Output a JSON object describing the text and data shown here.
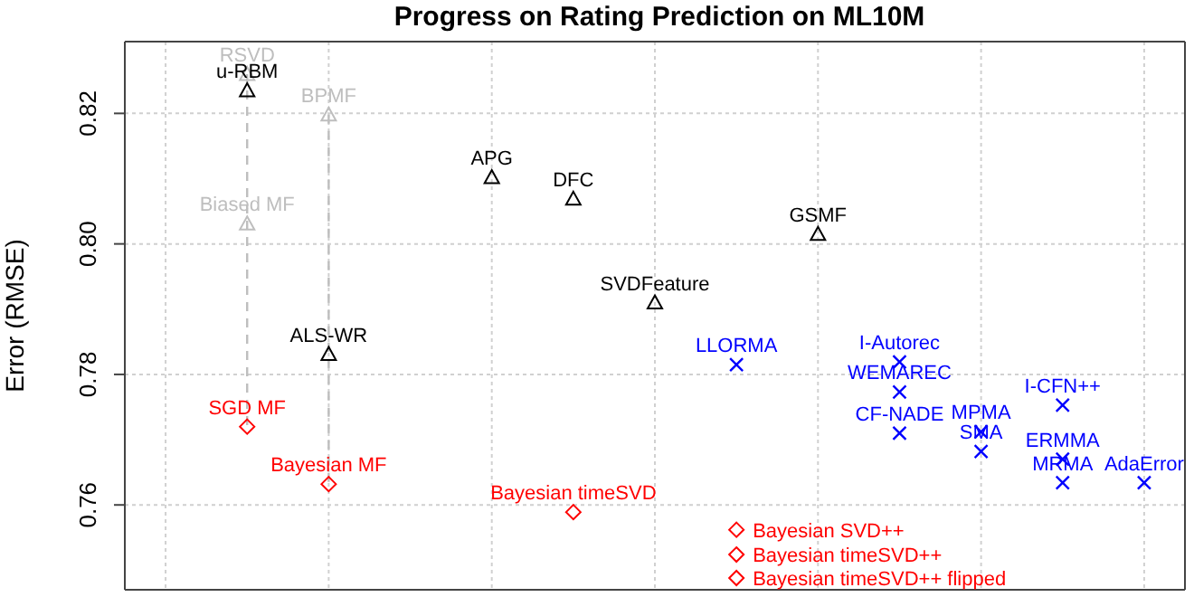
{
  "chart_data": {
    "type": "scatter",
    "title": "Progress on Rating Prediction on ML10M",
    "ylabel": "Error (RMSE)",
    "categories": [
      null,
      null,
      null,
      null,
      null,
      null,
      null,
      null,
      null,
      null,
      null,
      null,
      null
    ],
    "ylim": [
      0.747,
      0.831
    ],
    "yticks": [
      {
        "value": 0.76,
        "label": "0.76"
      },
      {
        "value": 0.78,
        "label": "0.78"
      },
      {
        "value": 0.8,
        "label": "0.80"
      },
      {
        "value": 0.82,
        "label": "0.82"
      }
    ],
    "grid": true,
    "legend": false,
    "series": [
      {
        "color": "#000000",
        "marker": "triangle",
        "values": [
          null,
          0.8235,
          0.7831,
          null,
          0.8102,
          0.8069,
          0.791,
          null,
          0.8015,
          null,
          null,
          null,
          null
        ],
        "value_labels": [
          null,
          "u-RBM",
          "ALS-WR",
          null,
          "APG",
          "DFC",
          "SVDFeature",
          null,
          "GSMF",
          null,
          null,
          null,
          null
        ]
      },
      {
        "color": "#bebebe",
        "marker": "triangle",
        "line_style": "dashed",
        "values": [
          null,
          0.826,
          0.8198,
          null,
          null,
          null,
          null,
          null,
          null,
          null,
          null,
          null,
          null
        ],
        "value_labels": [
          null,
          "RSVD",
          "BPMF",
          null,
          null,
          null,
          null,
          null,
          null,
          null,
          null,
          null,
          null
        ]
      },
      {
        "color": "#bebebe",
        "marker": "triangle",
        "values": [
          null,
          0.8031,
          null,
          null,
          null,
          null,
          null,
          null,
          null,
          null,
          null,
          null,
          null
        ],
        "value_labels": [
          null,
          "Biased MF",
          null,
          null,
          null,
          null,
          null,
          null,
          null,
          null,
          null,
          null,
          null
        ]
      },
      {
        "color": "#ff0000",
        "marker": "diamond",
        "values": [
          null,
          0.772,
          0.7632,
          null,
          null,
          0.7589,
          null,
          0.7562,
          null,
          null,
          null,
          null,
          null
        ],
        "value_labels": [
          null,
          "SGD MF",
          "Bayesian MF",
          null,
          null,
          "Bayesian timeSVD",
          null,
          "Bayesian SVD++",
          null,
          null,
          null,
          null,
          null
        ]
      },
      {
        "color": "#ff0000",
        "marker": "diamond",
        "values": [
          null,
          null,
          null,
          null,
          null,
          null,
          null,
          0.7524,
          null,
          null,
          null,
          null,
          null
        ],
        "value_labels": [
          null,
          null,
          null,
          null,
          null,
          null,
          null,
          "Bayesian timeSVD++",
          null,
          null,
          null,
          null,
          null
        ]
      },
      {
        "color": "#ff0000",
        "marker": "diamond",
        "values": [
          null,
          null,
          null,
          null,
          null,
          null,
          null,
          0.7488,
          null,
          null,
          null,
          null,
          null
        ],
        "value_labels": [
          null,
          null,
          null,
          null,
          null,
          null,
          null,
          "Bayesian timeSVD++ flipped",
          null,
          null,
          null,
          null,
          null
        ]
      },
      {
        "color": "#0000ff",
        "marker": "cross",
        "values": [
          null,
          null,
          null,
          null,
          null,
          null,
          null,
          0.7815,
          null,
          0.7819,
          0.7712,
          0.7753,
          0.7634
        ],
        "value_labels": [
          null,
          null,
          null,
          null,
          null,
          null,
          null,
          "LLORMA",
          null,
          "I-Autorec",
          "MPMA",
          "I-CFN++",
          "AdaError"
        ]
      },
      {
        "color": "#0000ff",
        "marker": "cross",
        "values": [
          null,
          null,
          null,
          null,
          null,
          null,
          null,
          null,
          null,
          0.7773,
          0.7682,
          0.767,
          null
        ],
        "value_labels": [
          null,
          null,
          null,
          null,
          null,
          null,
          null,
          null,
          null,
          "WEMAREC",
          "SMA",
          "ERMMA",
          null
        ]
      },
      {
        "color": "#0000ff",
        "marker": "cross",
        "values": [
          null,
          null,
          null,
          null,
          null,
          null,
          null,
          null,
          null,
          0.771,
          null,
          0.7634,
          null
        ],
        "value_labels": [
          null,
          null,
          null,
          null,
          null,
          null,
          null,
          null,
          null,
          "CF-NADE",
          null,
          "MRMA",
          null
        ]
      }
    ]
  }
}
